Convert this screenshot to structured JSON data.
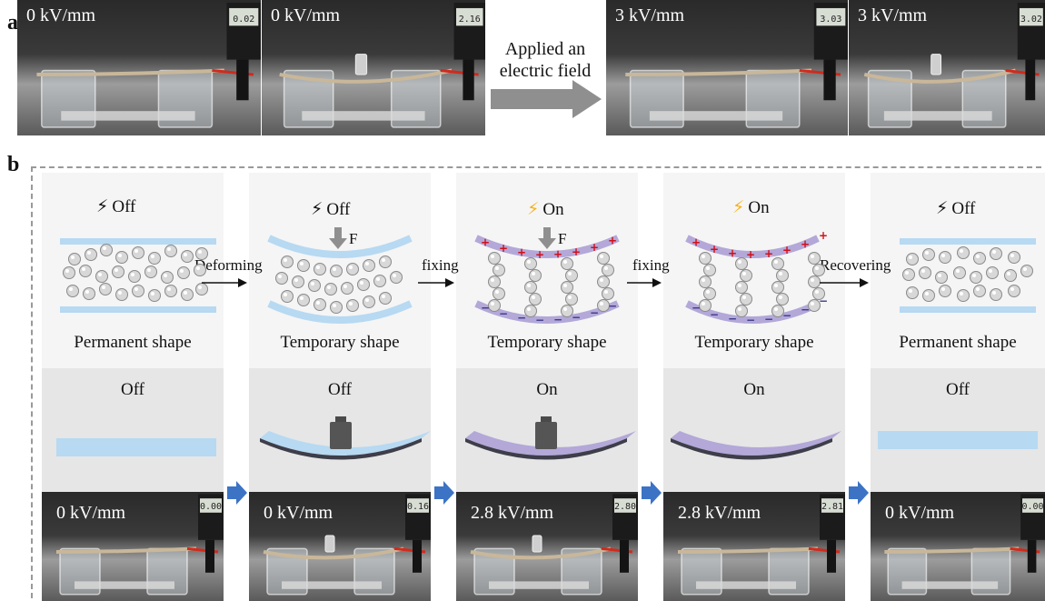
{
  "panel_a": {
    "letter": "a",
    "photos": [
      {
        "field": "0 kV/mm",
        "meter": "0.02"
      },
      {
        "field": "0 kV/mm",
        "meter": "2.16"
      },
      {
        "field": "3 kV/mm",
        "meter": "3.03"
      },
      {
        "field": "3 kV/mm",
        "meter": "3.02"
      }
    ],
    "arrow_text_1": "Applied an",
    "arrow_text_2": "electric field"
  },
  "panel_b": {
    "letter": "b",
    "states": [
      {
        "switch": "Off",
        "switch_on": false,
        "shape": "Permanent shape",
        "mid": "Off",
        "photo_field": "0 kV/mm",
        "meter": "0.00"
      },
      {
        "switch": "Off",
        "switch_on": false,
        "shape": "Temporary shape",
        "mid": "Off",
        "photo_field": "0 kV/mm",
        "meter": "0.16"
      },
      {
        "switch": "On",
        "switch_on": true,
        "shape": "Temporary shape",
        "mid": "On",
        "photo_field": "2.8 kV/mm",
        "meter": "2.80"
      },
      {
        "switch": "On",
        "switch_on": true,
        "shape": "Temporary shape",
        "mid": "On",
        "photo_field": "2.8 kV/mm",
        "meter": "2.81"
      },
      {
        "switch": "Off",
        "switch_on": false,
        "shape": "Permanent shape",
        "mid": "Off",
        "photo_field": "0 kV/mm",
        "meter": "0.00"
      }
    ],
    "force_label": "F",
    "steps": [
      "Deforming",
      "fixing",
      "fixing",
      "Recovering"
    ]
  },
  "colors": {
    "film_blue": "#b7d9f2",
    "film_purple": "#b3a8d8",
    "particle": "#d8d8d8",
    "bolt_off": "#444444",
    "bolt_on": "#f5b21b",
    "charge_plus": "#d0101a",
    "arrow_blue": "#3c73c5",
    "arrow_gray": "#8f8f8f"
  }
}
